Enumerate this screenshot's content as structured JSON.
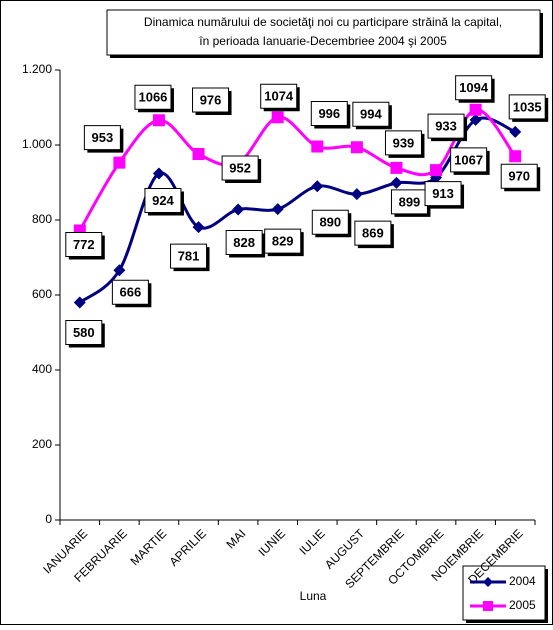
{
  "chart_data": {
    "type": "line",
    "title": "Dinamica numărului de societăţi noi cu participare străină la capital,",
    "subtitle": "în perioada Ianuarie-Decembriee 2004 şi 2005",
    "x_label": "Luna",
    "categories": [
      "IANUARIE",
      "FEBRUARIE",
      "MARTIE",
      "APRILIE",
      "MAI",
      "IUNIE",
      "IULIE",
      "AUGUST",
      "SEPTEMBRIE",
      "OCTOMBRIE",
      "NOIEMBRIE",
      "DECEMBRIE"
    ],
    "series": [
      {
        "name": "2004",
        "color": "#000080",
        "values": [
          580,
          666,
          924,
          781,
          828,
          829,
          890,
          869,
          899,
          913,
          1067,
          1035
        ]
      },
      {
        "name": "2005",
        "color": "#ff00ff",
        "values": [
          772,
          953,
          1066,
          976,
          952,
          1074,
          996,
          994,
          939,
          933,
          1094,
          970
        ]
      }
    ],
    "ylim": [
      0,
      1200
    ],
    "yticks": [
      0,
      200,
      400,
      600,
      800,
      {
        "value": 1000,
        "label": "1.000"
      },
      {
        "value": 1200,
        "label": "1.200"
      }
    ],
    "legend": "bottom-right"
  }
}
